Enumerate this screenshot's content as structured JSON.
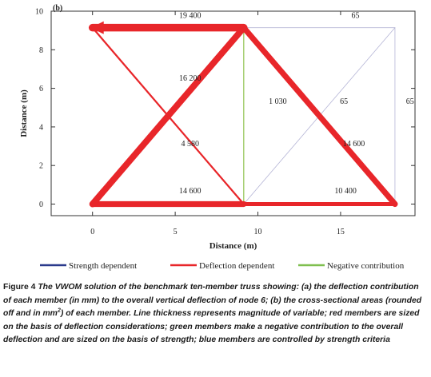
{
  "chart_data": {
    "type": "truss",
    "panel_label": "(b)",
    "xlabel": "Distance (m)",
    "ylabel": "Distance (m)",
    "xlim": [
      -2.5,
      19.5
    ],
    "ylim": [
      -0.6,
      10
    ],
    "xticks": [
      0,
      5,
      10,
      15
    ],
    "yticks": [
      0,
      2,
      4,
      6,
      8,
      10
    ],
    "colors": {
      "strength": "#b5b5d6",
      "deflection": "#e8262a",
      "negative": "#8fc24f",
      "legend_strength": "#2b3a8c",
      "legend_deflection": "#e8262a",
      "legend_negative": "#7fbf4f"
    },
    "nodes": {
      "n1": [
        0,
        9.144
      ],
      "n2": [
        9.144,
        9.144
      ],
      "n3": [
        18.288,
        9.144
      ],
      "n4": [
        0,
        0
      ],
      "n5": [
        9.144,
        0
      ],
      "n6": [
        18.288,
        0
      ]
    },
    "members": [
      {
        "from": "n1",
        "to": "n2",
        "area": "19 400",
        "category": "deflection",
        "arrow": true
      },
      {
        "from": "n2",
        "to": "n3",
        "area": "65",
        "category": "strength",
        "arrow": false
      },
      {
        "from": "n4",
        "to": "n5",
        "area": "14 600",
        "category": "deflection",
        "arrow": false
      },
      {
        "from": "n5",
        "to": "n6",
        "area": "10 400",
        "category": "deflection",
        "arrow": false
      },
      {
        "from": "n2",
        "to": "n5",
        "area": "1 030",
        "category": "negative",
        "arrow": false
      },
      {
        "from": "n3",
        "to": "n6",
        "area": "65",
        "category": "strength",
        "arrow": false
      },
      {
        "from": "n4",
        "to": "n2",
        "area": "16 200",
        "category": "deflection",
        "arrow": false
      },
      {
        "from": "n1",
        "to": "n5",
        "area": "4 580",
        "category": "deflection",
        "arrow": false
      },
      {
        "from": "n2",
        "to": "n6",
        "area": "14 600",
        "category": "deflection",
        "arrow": false
      },
      {
        "from": "n5",
        "to": "n3",
        "area": "65",
        "category": "strength",
        "arrow": false
      }
    ],
    "member_labels": [
      {
        "text": "19 400",
        "at": [
          5.9,
          9.65
        ]
      },
      {
        "text": "65",
        "at": [
          15.9,
          9.65
        ]
      },
      {
        "text": "16 200",
        "at": [
          5.9,
          6.4
        ]
      },
      {
        "text": "1 030",
        "at": [
          11.2,
          5.2
        ]
      },
      {
        "text": "65",
        "at": [
          15.2,
          5.2
        ]
      },
      {
        "text": "65",
        "at": [
          19.2,
          5.2
        ]
      },
      {
        "text": "4 580",
        "at": [
          5.9,
          3.0
        ]
      },
      {
        "text": "14 600",
        "at": [
          15.8,
          3.0
        ]
      },
      {
        "text": "14 600",
        "at": [
          5.9,
          0.55
        ]
      },
      {
        "text": "10 400",
        "at": [
          15.3,
          0.55
        ]
      }
    ],
    "legend": [
      {
        "label": "Strength dependent",
        "category": "strength"
      },
      {
        "label": "Deflection dependent",
        "category": "deflection"
      },
      {
        "label": "Negative contribution",
        "category": "negative"
      }
    ]
  },
  "caption": {
    "label": "Figure 4",
    "text": "The VWOM solution of the benchmark ten-member truss showing: (a) the deflection contribution of each member (in mm) to the overall vertical deflection of node 6; (b) the cross-sectional areas (rounded off and in mm",
    "sup": "2",
    "text_after": ") of each member. Line thickness represents magnitude of variable; red members are sized on the basis of deflection considerations; green members make a negative contribution to the overall deflection and are sized on the basis of strength; blue members are controlled by strength criteria"
  }
}
